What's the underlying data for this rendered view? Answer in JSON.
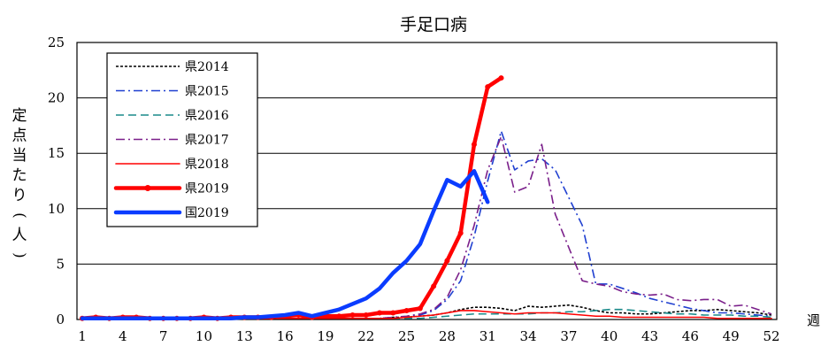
{
  "chart_data": {
    "type": "line",
    "title": "手足口病",
    "xlabel": "週",
    "ylabel": [
      "定",
      "点",
      "当",
      "た",
      "り",
      "(",
      "人",
      ")"
    ],
    "xlim": [
      1,
      52
    ],
    "ylim": [
      0,
      25
    ],
    "x_ticks": [
      1,
      4,
      7,
      10,
      13,
      16,
      19,
      22,
      25,
      28,
      31,
      34,
      37,
      40,
      43,
      46,
      49,
      52
    ],
    "y_ticks": [
      0,
      5,
      10,
      15,
      20,
      25
    ],
    "grid": "horizontal",
    "legend_position": "top-left",
    "series": [
      {
        "name": "県2014",
        "color": "#000000",
        "style": "dotted",
        "values": [
          0.1,
          0.1,
          0.1,
          0.1,
          0.1,
          0.1,
          0.1,
          0.1,
          0.1,
          0.1,
          0.1,
          0.1,
          0.1,
          0.1,
          0.1,
          0.1,
          0.1,
          0.1,
          0.1,
          0.1,
          0.1,
          0.1,
          0.1,
          0.2,
          0.2,
          0.3,
          0.4,
          0.6,
          0.9,
          1.1,
          1.1,
          1.0,
          0.8,
          1.2,
          1.1,
          1.2,
          1.3,
          1.1,
          0.8,
          0.6,
          0.6,
          0.5,
          0.5,
          0.6,
          0.7,
          0.8,
          0.8,
          0.9,
          0.8,
          0.7,
          0.6,
          0.4
        ]
      },
      {
        "name": "県2015",
        "color": "#1f3fd0",
        "style": "dashdot",
        "values": [
          0.1,
          0.1,
          0.1,
          0.1,
          0.1,
          0.1,
          0.1,
          0.1,
          0.1,
          0.1,
          0.1,
          0.1,
          0.1,
          0.1,
          0.1,
          0.1,
          0.1,
          0.1,
          0.1,
          0.1,
          0.1,
          0.1,
          0.1,
          0.2,
          0.2,
          0.4,
          0.8,
          1.8,
          3.5,
          7.5,
          12.5,
          17.0,
          13.5,
          14.3,
          14.5,
          13.5,
          11.0,
          8.5,
          3.2,
          3.2,
          2.8,
          2.4,
          1.9,
          1.6,
          1.3,
          1.0,
          0.8,
          0.6,
          0.6,
          0.5,
          0.4,
          0.3
        ]
      },
      {
        "name": "県2016",
        "color": "#1a8a8a",
        "style": "dashed",
        "values": [
          0.1,
          0.1,
          0.1,
          0.1,
          0.1,
          0.1,
          0.1,
          0.1,
          0.1,
          0.1,
          0.1,
          0.1,
          0.1,
          0.1,
          0.1,
          0.1,
          0.1,
          0.1,
          0.1,
          0.1,
          0.1,
          0.1,
          0.1,
          0.1,
          0.1,
          0.1,
          0.2,
          0.3,
          0.4,
          0.5,
          0.5,
          0.5,
          0.5,
          0.5,
          0.6,
          0.6,
          0.7,
          0.7,
          0.8,
          0.9,
          0.9,
          0.8,
          0.7,
          0.6,
          0.5,
          0.5,
          0.4,
          0.4,
          0.4,
          0.3,
          0.3,
          0.2
        ]
      },
      {
        "name": "県2017",
        "color": "#7a1f8a",
        "style": "dashdot",
        "values": [
          0.1,
          0.1,
          0.1,
          0.1,
          0.1,
          0.1,
          0.1,
          0.1,
          0.1,
          0.1,
          0.1,
          0.1,
          0.1,
          0.1,
          0.1,
          0.1,
          0.1,
          0.1,
          0.1,
          0.1,
          0.1,
          0.1,
          0.1,
          0.2,
          0.3,
          0.5,
          0.9,
          2.0,
          4.5,
          8.5,
          13.5,
          16.5,
          11.5,
          12.0,
          15.8,
          9.5,
          6.5,
          3.5,
          3.2,
          3.0,
          2.5,
          2.3,
          2.2,
          2.3,
          1.8,
          1.7,
          1.8,
          1.8,
          1.2,
          1.3,
          0.9,
          0.5
        ]
      },
      {
        "name": "県2018",
        "color": "#ff0000",
        "style": "solid",
        "values": [
          0.1,
          0.1,
          0.1,
          0.1,
          0.1,
          0.1,
          0.1,
          0.1,
          0.1,
          0.1,
          0.1,
          0.1,
          0.1,
          0.1,
          0.1,
          0.1,
          0.1,
          0.1,
          0.1,
          0.1,
          0.1,
          0.1,
          0.1,
          0.1,
          0.2,
          0.3,
          0.4,
          0.6,
          0.8,
          0.8,
          0.7,
          0.6,
          0.5,
          0.6,
          0.6,
          0.6,
          0.5,
          0.4,
          0.3,
          0.3,
          0.2,
          0.2,
          0.2,
          0.2,
          0.2,
          0.2,
          0.2,
          0.1,
          0.1,
          0.1,
          0.1,
          0.1
        ]
      },
      {
        "name": "県2019",
        "color": "#ff0000",
        "style": "thick-marker",
        "values": [
          0.1,
          0.2,
          0.1,
          0.2,
          0.2,
          0.1,
          0.1,
          0.1,
          0.1,
          0.2,
          0.1,
          0.2,
          0.2,
          0.2,
          0.2,
          0.3,
          0.4,
          0.2,
          0.3,
          0.3,
          0.4,
          0.4,
          0.6,
          0.6,
          0.8,
          1.0,
          3.0,
          5.3,
          7.8,
          15.8,
          21.0,
          21.8
        ]
      },
      {
        "name": "国2019",
        "color": "#0a3cff",
        "style": "thick",
        "values": [
          0.1,
          0.1,
          0.1,
          0.1,
          0.1,
          0.1,
          0.1,
          0.1,
          0.1,
          0.1,
          0.1,
          0.1,
          0.2,
          0.2,
          0.3,
          0.4,
          0.6,
          0.3,
          0.6,
          0.9,
          1.4,
          1.9,
          2.8,
          4.2,
          5.3,
          6.8,
          9.8,
          12.6,
          12.0,
          13.4,
          10.6
        ]
      }
    ]
  }
}
